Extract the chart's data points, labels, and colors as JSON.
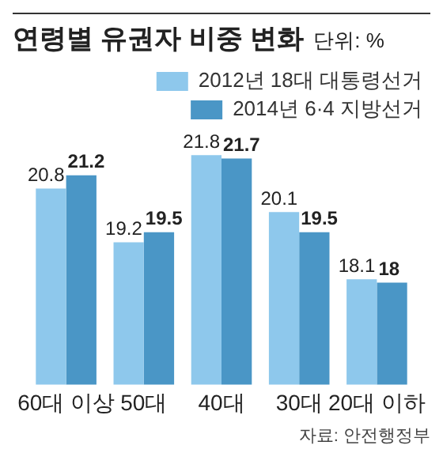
{
  "chart_data": {
    "type": "bar",
    "title": "연령별 유권자 비중 변화",
    "subtitle": "단위: %",
    "categories": [
      "60대 이상",
      "50대",
      "40대",
      "30대",
      "20대 이하"
    ],
    "series": [
      {
        "name": "2012년 18대 대통령선거",
        "color": "#8ec8ec",
        "values": [
          20.8,
          19.2,
          21.8,
          20.1,
          18.1
        ]
      },
      {
        "name": "2014년 6·4 지방선거",
        "color": "#4a96c6",
        "values": [
          21.2,
          19.5,
          21.7,
          19.5,
          18
        ]
      }
    ],
    "data_labels": true,
    "grid": false,
    "legend": "top right",
    "annotations": [
      "자료: 안전행정부"
    ]
  }
}
